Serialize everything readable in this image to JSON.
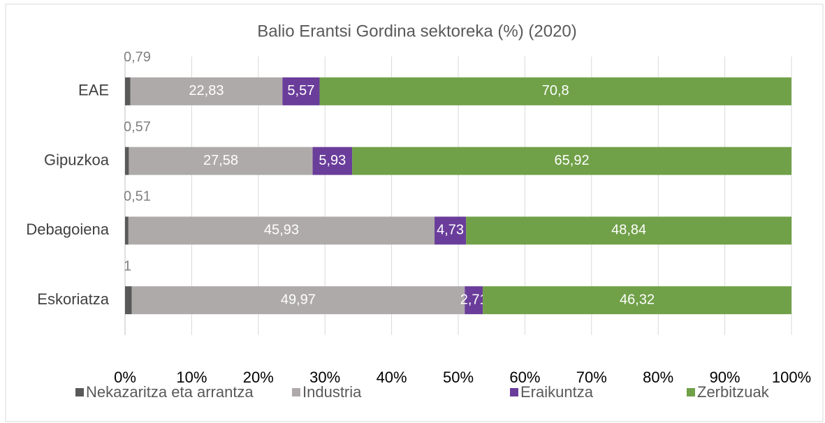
{
  "chart_data": {
    "type": "stacked-bar-horizontal",
    "title": "Balio Erantsi Gordina sektoreka (%) (2020)",
    "categories": [
      "EAE",
      "Gipuzkoa",
      "Debagoiena",
      "Eskoriatza"
    ],
    "series": [
      {
        "name": "Nekazaritza eta arrantza",
        "color": "#595959",
        "values": [
          0.79,
          0.57,
          0.51,
          1
        ],
        "value_labels": [
          "0,79",
          "0,57",
          "0,51",
          "1"
        ]
      },
      {
        "name": "Industria",
        "color": "#aeaaaa",
        "values": [
          22.83,
          27.58,
          45.93,
          49.97
        ],
        "value_labels": [
          "22,83",
          "27,58",
          "45,93",
          "49,97"
        ]
      },
      {
        "name": "Eraikuntza",
        "color": "#6a3d9a",
        "values": [
          5.57,
          5.93,
          4.73,
          2.71
        ],
        "value_labels": [
          "5,57",
          "5,93",
          "4,73",
          "2,71"
        ]
      },
      {
        "name": "Zerbitzuak",
        "color": "#70a048",
        "values": [
          70.8,
          65.92,
          48.84,
          46.32
        ],
        "value_labels": [
          "70,8",
          "65,92",
          "48,84",
          "46,32"
        ]
      }
    ],
    "xlim": [
      0,
      100
    ],
    "xticks": [
      {
        "value": 0,
        "label": "0%"
      },
      {
        "value": 10,
        "label": "10%"
      },
      {
        "value": 20,
        "label": "20%"
      },
      {
        "value": 30,
        "label": "30%"
      },
      {
        "value": 40,
        "label": "40%"
      },
      {
        "value": 50,
        "label": "50%"
      },
      {
        "value": 60,
        "label": "60%"
      },
      {
        "value": 70,
        "label": "70%"
      },
      {
        "value": 80,
        "label": "80%"
      },
      {
        "value": 90,
        "label": "90%"
      },
      {
        "value": 100,
        "label": "100%"
      }
    ],
    "grid": true,
    "legend": "bottom"
  }
}
